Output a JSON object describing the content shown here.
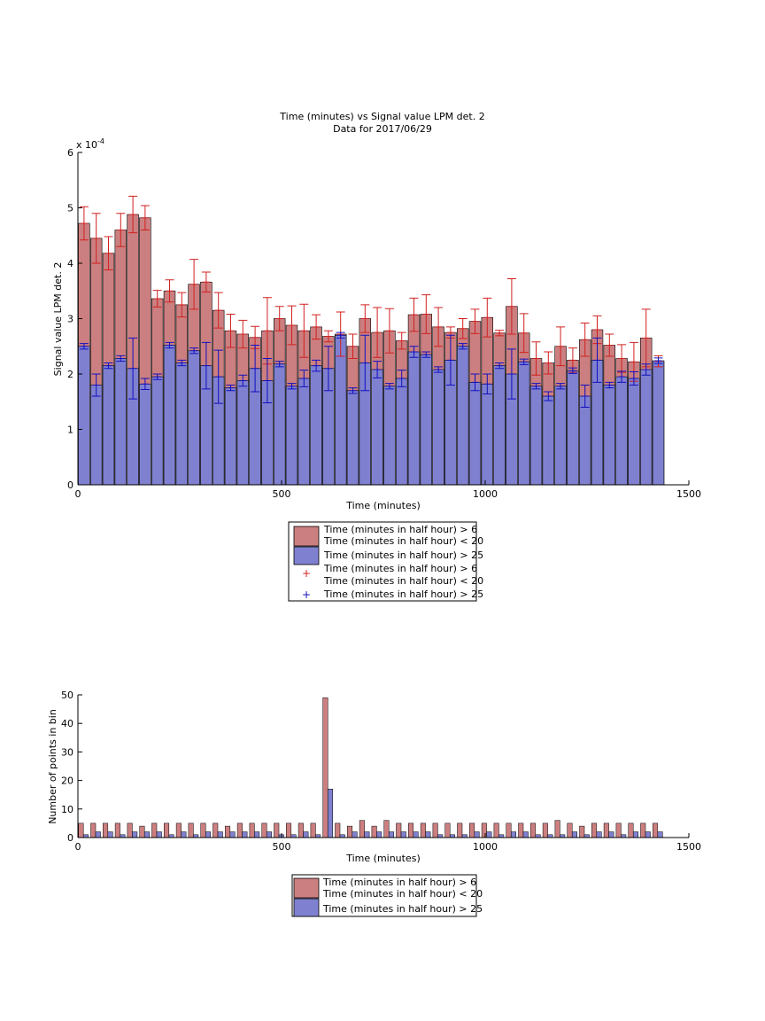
{
  "chart_data": [
    {
      "type": "bar",
      "title": "Time (minutes) vs Signal value LPM det. 2",
      "subtitle": "Data for 2017/06/29",
      "xlabel": "Time (minutes)",
      "ylabel": "Signal value LPM det. 2",
      "y_exponent_label": "x 10",
      "y_exponent_power": "-4",
      "xlim": [
        0,
        1500
      ],
      "ylim": [
        0,
        6
      ],
      "xticks": [
        "0",
        "500",
        "1000",
        "1500"
      ],
      "yticks": [
        "0",
        "1",
        "2",
        "3",
        "4",
        "5",
        "6"
      ],
      "bin_width": 30,
      "x": [
        15,
        45,
        75,
        105,
        135,
        165,
        195,
        225,
        255,
        285,
        315,
        345,
        375,
        405,
        435,
        465,
        495,
        525,
        555,
        585,
        615,
        645,
        675,
        705,
        735,
        765,
        795,
        825,
        855,
        885,
        915,
        945,
        975,
        1005,
        1035,
        1065,
        1095,
        1125,
        1155,
        1185,
        1215,
        1245,
        1275,
        1305,
        1335,
        1365,
        1395,
        1425
      ],
      "series": [
        {
          "name": "Time (minutes in half hour) > 6\nTime (minutes in half hour) < 20",
          "color": "#cc7f80",
          "values": [
            4.72,
            4.45,
            4.18,
            4.6,
            4.88,
            4.82,
            3.36,
            3.5,
            3.25,
            3.62,
            3.66,
            3.15,
            2.78,
            2.72,
            2.66,
            2.78,
            3.0,
            2.88,
            2.78,
            2.85,
            2.68,
            2.72,
            2.5,
            3.0,
            2.75,
            2.78,
            2.6,
            3.07,
            3.08,
            2.85,
            2.75,
            2.82,
            2.95,
            3.02,
            2.74,
            3.22,
            2.74,
            2.28,
            2.2,
            2.5,
            2.25,
            2.62,
            2.8,
            2.52,
            2.28,
            2.22,
            2.65,
            2.23
          ],
          "errors": [
            0.3,
            0.45,
            0.3,
            0.3,
            0.33,
            0.22,
            0.15,
            0.2,
            0.22,
            0.45,
            0.18,
            0.32,
            0.3,
            0.25,
            0.2,
            0.6,
            0.22,
            0.35,
            0.48,
            0.22,
            0.1,
            0.4,
            0.22,
            0.25,
            0.45,
            0.4,
            0.15,
            0.3,
            0.35,
            0.35,
            0.1,
            0.18,
            0.22,
            0.35,
            0.05,
            0.5,
            0.35,
            0.3,
            0.2,
            0.35,
            0.22,
            0.3,
            0.25,
            0.2,
            0.25,
            0.35,
            0.52,
            0.1
          ]
        },
        {
          "name": "Time (minutes in half hour) > 25",
          "color": "#8080d0",
          "values": [
            2.5,
            1.8,
            2.15,
            2.28,
            2.1,
            1.82,
            1.95,
            2.52,
            2.2,
            2.42,
            2.15,
            1.95,
            1.75,
            1.88,
            2.1,
            1.88,
            2.18,
            1.78,
            1.92,
            2.15,
            2.1,
            2.7,
            1.7,
            2.2,
            2.08,
            1.78,
            1.92,
            2.4,
            2.35,
            2.08,
            2.25,
            2.5,
            1.85,
            1.82,
            2.15,
            2.0,
            2.22,
            1.78,
            1.6,
            1.78,
            2.06,
            1.6,
            2.25,
            1.8,
            1.95,
            1.92,
            2.08,
            2.24
          ],
          "errors": [
            0.05,
            0.2,
            0.05,
            0.05,
            0.55,
            0.1,
            0.05,
            0.05,
            0.05,
            0.05,
            0.42,
            0.48,
            0.05,
            0.1,
            0.42,
            0.4,
            0.05,
            0.05,
            0.15,
            0.1,
            0.4,
            0.05,
            0.05,
            0.5,
            0.15,
            0.05,
            0.15,
            0.1,
            0.05,
            0.05,
            0.45,
            0.05,
            0.15,
            0.18,
            0.05,
            0.45,
            0.05,
            0.05,
            0.08,
            0.05,
            0.05,
            0.2,
            0.4,
            0.05,
            0.1,
            0.12,
            0.1,
            0.05
          ]
        }
      ],
      "legend": {
        "placement": "below",
        "entries": [
          "Time (minutes in half hour) > 6\nTime (minutes in half hour) < 20",
          "Time (minutes in half hour) > 25",
          "Time (minutes in half hour) > 6\nTime (minutes in half hour) < 20",
          "Time (minutes in half hour) > 25"
        ]
      }
    },
    {
      "type": "bar",
      "xlabel": "Time (minutes)",
      "ylabel": "Number of points in bin",
      "xlim": [
        0,
        1500
      ],
      "ylim": [
        0,
        50
      ],
      "xticks": [
        "0",
        "500",
        "1000",
        "1500"
      ],
      "yticks": [
        "0",
        "10",
        "20",
        "30",
        "40",
        "50"
      ],
      "x": [
        15,
        45,
        75,
        105,
        135,
        165,
        195,
        225,
        255,
        285,
        315,
        345,
        375,
        405,
        435,
        465,
        495,
        525,
        555,
        585,
        615,
        645,
        675,
        705,
        735,
        765,
        795,
        825,
        855,
        885,
        915,
        945,
        975,
        1005,
        1035,
        1065,
        1095,
        1125,
        1155,
        1185,
        1215,
        1245,
        1275,
        1305,
        1335,
        1365,
        1395,
        1425
      ],
      "series": [
        {
          "name": "Time (minutes in half hour) > 6\nTime (minutes in half hour) < 20",
          "color": "#cc7f80",
          "values": [
            5,
            5,
            5,
            5,
            5,
            4,
            5,
            5,
            5,
            5,
            5,
            5,
            4,
            5,
            5,
            5,
            5,
            5,
            5,
            5,
            49,
            5,
            4,
            6,
            4,
            6,
            5,
            5,
            5,
            5,
            5,
            5,
            5,
            5,
            5,
            5,
            5,
            5,
            5,
            6,
            5,
            4,
            5,
            5,
            5,
            5,
            5,
            5
          ]
        },
        {
          "name": "Time (minutes in half hour) > 25",
          "color": "#8080d0",
          "values": [
            1,
            2,
            2,
            1,
            2,
            2,
            2,
            1,
            2,
            1,
            2,
            2,
            2,
            2,
            2,
            2,
            1,
            1,
            2,
            1,
            17,
            1,
            2,
            2,
            2,
            2,
            2,
            2,
            2,
            1,
            1,
            1,
            2,
            2,
            1,
            2,
            2,
            1,
            1,
            1,
            2,
            1,
            2,
            2,
            1,
            2,
            2,
            2
          ]
        }
      ],
      "legend": {
        "placement": "below",
        "entries": [
          "Time (minutes in half hour) > 6\nTime (minutes in half hour) < 20",
          "Time (minutes in half hour) > 25"
        ]
      }
    }
  ]
}
